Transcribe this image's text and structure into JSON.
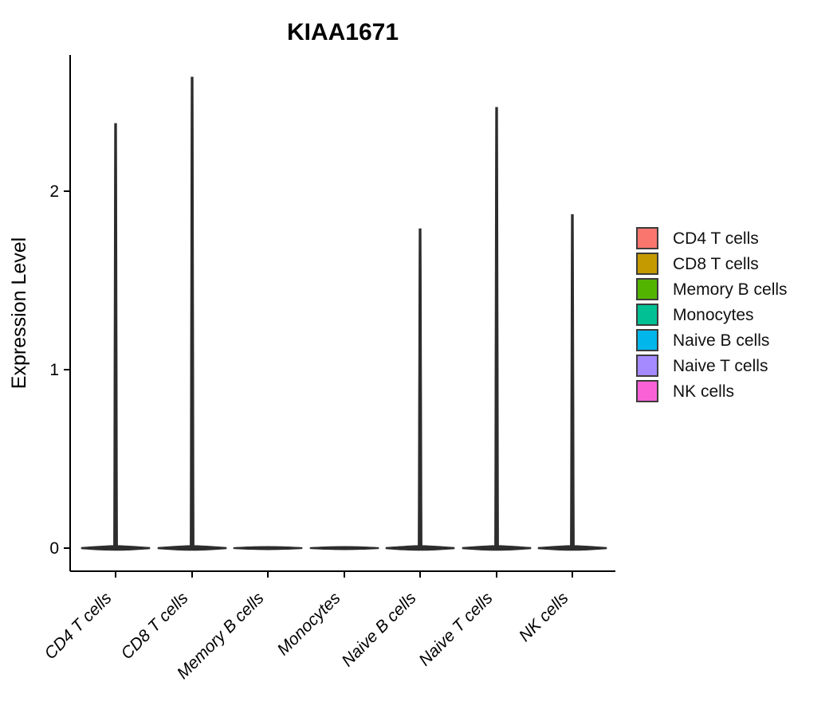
{
  "figure": {
    "background": "#FFFFFF",
    "axis_color": "#000000",
    "violin_outline_color": "#2D2D2D"
  },
  "chart_data": {
    "type": "violin",
    "title": "KIAA1671",
    "ylabel": "Expression Level",
    "xlabel": "",
    "y_ticks": [
      "0",
      "1",
      "2"
    ],
    "y_tick_values": [
      0,
      1,
      2
    ],
    "ylim": [
      -0.13,
      2.76
    ],
    "grid": false,
    "legend_position": "right",
    "categories": [
      "CD4 T cells",
      "CD8 T cells",
      "Memory B cells",
      "Monocytes",
      "Naive B cells",
      "Naive T cells",
      "NK cells"
    ],
    "distribution_note": "expression density concentrated at 0 with thin tail up to max",
    "series": [
      {
        "name": "CD4 T cells",
        "color": "#F8766D",
        "max_expression": 2.38
      },
      {
        "name": "CD8 T cells",
        "color": "#C49A00",
        "max_expression": 2.64
      },
      {
        "name": "Memory B cells",
        "color": "#53B400",
        "max_expression": 0
      },
      {
        "name": "Monocytes",
        "color": "#00C094",
        "max_expression": 0
      },
      {
        "name": "Naive B cells",
        "color": "#00B6EB",
        "max_expression": 1.79
      },
      {
        "name": "Naive T cells",
        "color": "#A58AFF",
        "max_expression": 2.47
      },
      {
        "name": "NK cells",
        "color": "#FB61D7",
        "max_expression": 1.87
      }
    ]
  },
  "legend": {
    "items": [
      {
        "label": "CD4 T cells",
        "color": "#F8766D"
      },
      {
        "label": "CD8 T cells",
        "color": "#C49A00"
      },
      {
        "label": "Memory B cells",
        "color": "#53B400"
      },
      {
        "label": "Monocytes",
        "color": "#00C094"
      },
      {
        "label": "Naive B cells",
        "color": "#00B6EB"
      },
      {
        "label": "Naive T cells",
        "color": "#A58AFF"
      },
      {
        "label": "NK cells",
        "color": "#FB61D7"
      }
    ]
  }
}
